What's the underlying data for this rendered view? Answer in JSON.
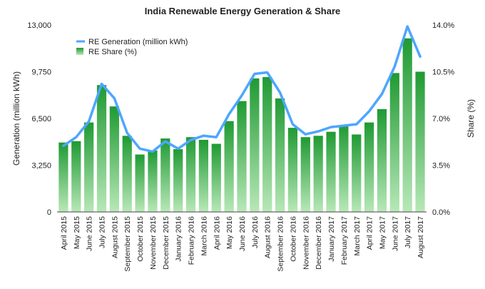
{
  "chart_data": {
    "type": "bar",
    "title": "India Renewable Energy Generation & Share",
    "ylabel": "Generation (million kWh)",
    "y2label": "Share (%)",
    "ylim": [
      0,
      13000
    ],
    "y2lim": [
      0,
      14
    ],
    "yticks": [
      "0",
      "3,250",
      "6,500",
      "9,750",
      "13,000"
    ],
    "y2ticks": [
      "0.0%",
      "3.5%",
      "7.0%",
      "10.5%",
      "14.0%"
    ],
    "categories": [
      "April 2015",
      "May 2015",
      "June 2015",
      "July 2015",
      "August 2015",
      "September 2015",
      "October 2015",
      "November 2015",
      "December 2015",
      "January 2016",
      "February 2016",
      "March 2016",
      "April 2016",
      "May 2016",
      "June 2016",
      "July 2016",
      "August 2016",
      "September 2016",
      "October 2016",
      "November 2016",
      "December 2016",
      "January 2017",
      "February 2017",
      "March 2017",
      "April 2017",
      "May 2017",
      "June 2017",
      "July 2017",
      "August 2017"
    ],
    "series": [
      {
        "name": "RE Generation (million kWh)",
        "type": "line",
        "axis": "left",
        "color": "#4da6ff",
        "values": [
          4600,
          5200,
          6300,
          8900,
          7900,
          5500,
          4400,
          4200,
          4900,
          4400,
          5000,
          5300,
          5200,
          6800,
          8100,
          9600,
          9700,
          8300,
          6100,
          5400,
          5600,
          5900,
          6000,
          6100,
          7000,
          8200,
          10100,
          12900,
          10800
        ]
      },
      {
        "name": "RE Share (%)",
        "type": "bar",
        "axis": "right",
        "color": "#2aa63d",
        "values": [
          5.2,
          5.3,
          6.7,
          9.5,
          7.9,
          5.7,
          4.3,
          4.6,
          5.5,
          4.7,
          5.6,
          5.4,
          5.1,
          6.8,
          8.3,
          10.0,
          10.1,
          8.5,
          6.3,
          5.6,
          5.7,
          6.0,
          6.5,
          5.8,
          6.7,
          7.7,
          10.4,
          13.0,
          10.5
        ]
      }
    ],
    "legend": "top-left",
    "grid": false
  }
}
